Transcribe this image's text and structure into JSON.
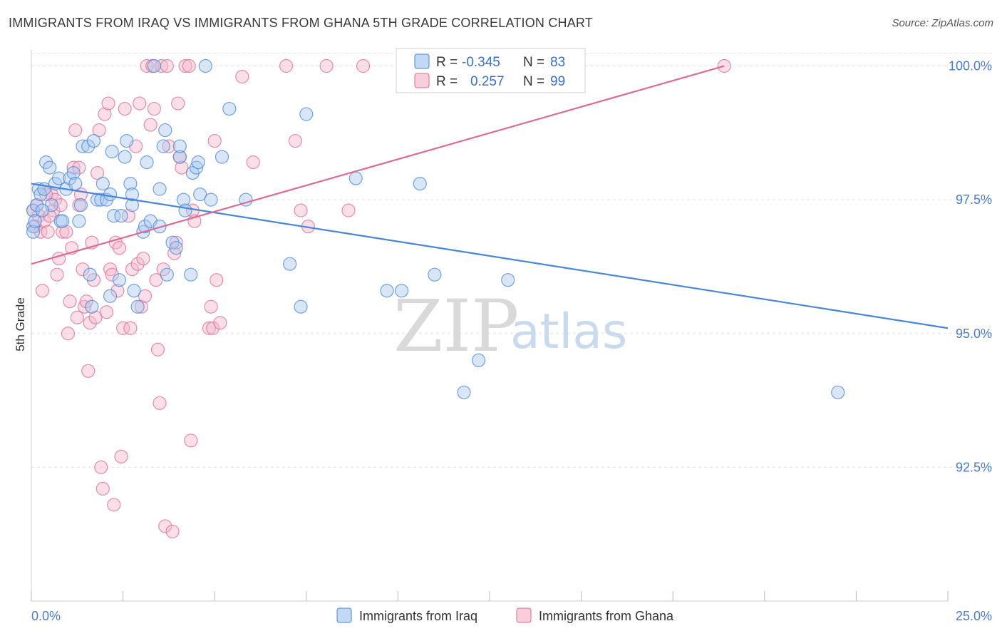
{
  "title": "IMMIGRANTS FROM IRAQ VS IMMIGRANTS FROM GHANA 5TH GRADE CORRELATION CHART",
  "source": "Source: ZipAtlas.com",
  "watermark": {
    "zip": "ZIP",
    "atlas": "atlas"
  },
  "colors": {
    "iraq": "#4a86d8",
    "iraq_fill": "#a9c8f0",
    "ghana": "#e06a93",
    "ghana_fill": "#f5b9cc",
    "tick_text": "#4a7ccc"
  },
  "legend": {
    "r_label": "R =",
    "n_label": "N =",
    "iraq": {
      "r": "-0.345",
      "n": "83"
    },
    "ghana": {
      "r": "0.257",
      "n": "99"
    }
  },
  "bottom_legend": {
    "iraq": "Immigrants from Iraq",
    "ghana": "Immigrants from Ghana"
  },
  "chart_data": {
    "type": "scatter",
    "title": "IMMIGRANTS FROM IRAQ VS IMMIGRANTS FROM GHANA 5TH GRADE CORRELATION CHART",
    "xlabel": "",
    "ylabel": "5th Grade",
    "xlim": [
      0,
      25
    ],
    "ylim": [
      90.0,
      100.3
    ],
    "x_tick_labels": [
      "0.0%",
      "25.0%"
    ],
    "y_ticks": [
      92.5,
      95.0,
      97.5,
      100.0
    ],
    "y_tick_labels": [
      "92.5%",
      "95.0%",
      "97.5%",
      "100.0%"
    ],
    "grid": true,
    "legend_position": "top-center",
    "series": [
      {
        "name": "Immigrants from Iraq",
        "trend": {
          "x": [
            0.0,
            25.0
          ],
          "y": [
            97.8,
            95.1
          ]
        },
        "points": [
          [
            0.05,
            97.3
          ],
          [
            0.05,
            97.0
          ],
          [
            0.05,
            96.9
          ],
          [
            0.1,
            97.1
          ],
          [
            0.15,
            97.4
          ],
          [
            0.2,
            97.7
          ],
          [
            0.25,
            97.6
          ],
          [
            0.35,
            97.7
          ],
          [
            0.4,
            98.2
          ],
          [
            0.5,
            98.1
          ],
          [
            0.55,
            97.4
          ],
          [
            0.65,
            97.8
          ],
          [
            0.75,
            97.9
          ],
          [
            0.8,
            97.1
          ],
          [
            0.85,
            97.1
          ],
          [
            0.95,
            97.7
          ],
          [
            1.05,
            97.9
          ],
          [
            1.15,
            98.0
          ],
          [
            1.2,
            97.8
          ],
          [
            1.3,
            97.1
          ],
          [
            1.35,
            97.4
          ],
          [
            1.4,
            98.5
          ],
          [
            1.55,
            98.5
          ],
          [
            1.6,
            96.1
          ],
          [
            1.65,
            95.5
          ],
          [
            1.7,
            98.6
          ],
          [
            1.8,
            97.5
          ],
          [
            1.9,
            97.5
          ],
          [
            1.95,
            97.8
          ],
          [
            2.05,
            97.5
          ],
          [
            2.15,
            97.6
          ],
          [
            2.15,
            95.7
          ],
          [
            2.2,
            98.4
          ],
          [
            2.25,
            97.2
          ],
          [
            2.4,
            96.0
          ],
          [
            2.45,
            97.2
          ],
          [
            2.55,
            98.3
          ],
          [
            2.6,
            98.6
          ],
          [
            2.7,
            97.8
          ],
          [
            2.75,
            97.4
          ],
          [
            2.75,
            97.6
          ],
          [
            2.8,
            95.8
          ],
          [
            2.9,
            95.5
          ],
          [
            3.05,
            96.9
          ],
          [
            3.1,
            97.0
          ],
          [
            3.15,
            98.2
          ],
          [
            3.25,
            97.1
          ],
          [
            3.35,
            100.0
          ],
          [
            3.5,
            97.0
          ],
          [
            3.5,
            97.7
          ],
          [
            3.6,
            98.5
          ],
          [
            3.65,
            98.8
          ],
          [
            3.7,
            96.1
          ],
          [
            3.85,
            96.7
          ],
          [
            3.95,
            96.6
          ],
          [
            4.05,
            98.3
          ],
          [
            4.05,
            98.5
          ],
          [
            4.15,
            97.5
          ],
          [
            4.2,
            97.3
          ],
          [
            4.35,
            96.1
          ],
          [
            4.4,
            98.0
          ],
          [
            4.5,
            98.1
          ],
          [
            4.55,
            98.2
          ],
          [
            4.6,
            97.6
          ],
          [
            4.75,
            100.0
          ],
          [
            4.9,
            97.5
          ],
          [
            5.2,
            98.3
          ],
          [
            5.4,
            99.2
          ],
          [
            5.85,
            97.5
          ],
          [
            7.05,
            96.3
          ],
          [
            7.35,
            95.5
          ],
          [
            7.5,
            99.1
          ],
          [
            8.85,
            97.9
          ],
          [
            9.7,
            95.8
          ],
          [
            10.1,
            95.8
          ],
          [
            10.6,
            97.8
          ],
          [
            11.0,
            96.1
          ],
          [
            11.8,
            93.9
          ],
          [
            12.2,
            94.5
          ],
          [
            13.0,
            96.0
          ],
          [
            14.2,
            100.0
          ],
          [
            22.0,
            93.9
          ],
          [
            0.3,
            97.3
          ]
        ]
      },
      {
        "name": "Immigrants from Ghana",
        "trend": {
          "x": [
            0.0,
            18.9
          ],
          "y": [
            96.3,
            100.0
          ]
        },
        "points": [
          [
            0.05,
            97.3
          ],
          [
            0.1,
            97.0
          ],
          [
            0.15,
            97.4
          ],
          [
            0.2,
            97.2
          ],
          [
            0.25,
            96.9
          ],
          [
            0.3,
            95.8
          ],
          [
            0.35,
            97.1
          ],
          [
            0.45,
            96.9
          ],
          [
            0.55,
            97.6
          ],
          [
            0.6,
            97.3
          ],
          [
            0.65,
            97.5
          ],
          [
            0.7,
            96.1
          ],
          [
            0.75,
            96.4
          ],
          [
            0.8,
            97.4
          ],
          [
            0.85,
            96.9
          ],
          [
            0.95,
            96.9
          ],
          [
            1.0,
            95.0
          ],
          [
            1.05,
            95.6
          ],
          [
            1.1,
            96.6
          ],
          [
            1.15,
            98.1
          ],
          [
            1.2,
            98.8
          ],
          [
            1.25,
            95.3
          ],
          [
            1.3,
            97.4
          ],
          [
            1.35,
            97.6
          ],
          [
            1.4,
            96.2
          ],
          [
            1.45,
            95.5
          ],
          [
            1.5,
            95.6
          ],
          [
            1.55,
            94.3
          ],
          [
            1.6,
            95.2
          ],
          [
            1.65,
            96.7
          ],
          [
            1.7,
            96.0
          ],
          [
            1.75,
            95.3
          ],
          [
            1.8,
            98.0
          ],
          [
            1.85,
            98.8
          ],
          [
            1.9,
            92.5
          ],
          [
            1.95,
            92.1
          ],
          [
            2.0,
            99.1
          ],
          [
            2.05,
            95.4
          ],
          [
            2.1,
            99.3
          ],
          [
            2.15,
            96.2
          ],
          [
            2.2,
            96.1
          ],
          [
            2.25,
            91.8
          ],
          [
            2.3,
            96.7
          ],
          [
            2.35,
            95.8
          ],
          [
            2.4,
            96.6
          ],
          [
            2.45,
            92.7
          ],
          [
            2.5,
            95.1
          ],
          [
            2.55,
            99.2
          ],
          [
            2.65,
            97.2
          ],
          [
            2.7,
            95.1
          ],
          [
            2.75,
            96.2
          ],
          [
            2.85,
            98.5
          ],
          [
            2.9,
            96.3
          ],
          [
            2.95,
            99.3
          ],
          [
            3.0,
            95.5
          ],
          [
            3.05,
            96.4
          ],
          [
            3.1,
            95.7
          ],
          [
            3.15,
            100.0
          ],
          [
            3.25,
            98.9
          ],
          [
            3.3,
            100.0
          ],
          [
            3.35,
            99.2
          ],
          [
            3.4,
            96.0
          ],
          [
            3.45,
            94.7
          ],
          [
            3.5,
            93.7
          ],
          [
            3.55,
            100.0
          ],
          [
            3.6,
            96.2
          ],
          [
            3.65,
            91.4
          ],
          [
            3.7,
            100.0
          ],
          [
            3.75,
            98.5
          ],
          [
            3.85,
            91.3
          ],
          [
            3.9,
            96.5
          ],
          [
            3.95,
            96.7
          ],
          [
            4.0,
            99.3
          ],
          [
            4.05,
            98.3
          ],
          [
            4.1,
            98.1
          ],
          [
            4.2,
            100.0
          ],
          [
            4.3,
            100.0
          ],
          [
            4.35,
            93.0
          ],
          [
            4.4,
            97.3
          ],
          [
            4.45,
            97.1
          ],
          [
            4.85,
            95.1
          ],
          [
            4.9,
            95.5
          ],
          [
            4.95,
            95.1
          ],
          [
            5.0,
            98.6
          ],
          [
            5.05,
            96.0
          ],
          [
            5.15,
            95.2
          ],
          [
            5.75,
            99.8
          ],
          [
            6.05,
            98.2
          ],
          [
            6.95,
            100.0
          ],
          [
            7.2,
            98.6
          ],
          [
            7.35,
            97.3
          ],
          [
            7.55,
            97.0
          ],
          [
            8.05,
            100.0
          ],
          [
            8.65,
            97.3
          ],
          [
            9.05,
            100.0
          ],
          [
            18.9,
            100.0
          ],
          [
            0.4,
            97.6
          ],
          [
            0.5,
            97.2
          ],
          [
            1.3,
            98.1
          ]
        ]
      }
    ]
  }
}
